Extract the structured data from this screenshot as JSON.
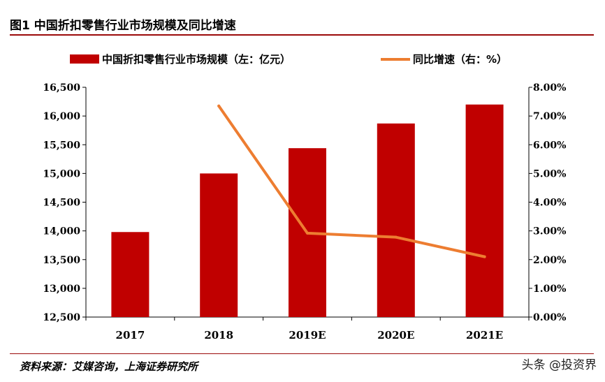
{
  "figure": {
    "title": "图1  中国折扣零售行业市场规模及同比增速",
    "source": "资料来源：艾媒咨询，上海证券研究所",
    "watermark": "头条 @投资界"
  },
  "chart_data": {
    "type": "bar+line",
    "categories": [
      "2017",
      "2018",
      "2019E",
      "2020E",
      "2021E"
    ],
    "series": [
      {
        "name": "中国折扣零售行业市场规模（左：亿元）",
        "type": "bar",
        "axis": "left",
        "color": "#c00000",
        "values": [
          13980,
          15000,
          15440,
          15870,
          16200
        ]
      },
      {
        "name": "同比增速（右：%）",
        "type": "line",
        "axis": "right",
        "color": "#ed7d31",
        "values": [
          null,
          7.35,
          2.92,
          2.78,
          2.1
        ]
      }
    ],
    "y_left": {
      "min": 12500,
      "max": 16500,
      "ticks": [
        "12,500",
        "13,000",
        "13,500",
        "14,000",
        "14,500",
        "15,000",
        "15,500",
        "16,000",
        "16,500"
      ]
    },
    "y_right": {
      "min": 0,
      "max": 8,
      "ticks": [
        "0.00%",
        "1.00%",
        "2.00%",
        "3.00%",
        "4.00%",
        "5.00%",
        "6.00%",
        "7.00%",
        "8.00%"
      ]
    },
    "grid": false,
    "legend_position": "top"
  }
}
